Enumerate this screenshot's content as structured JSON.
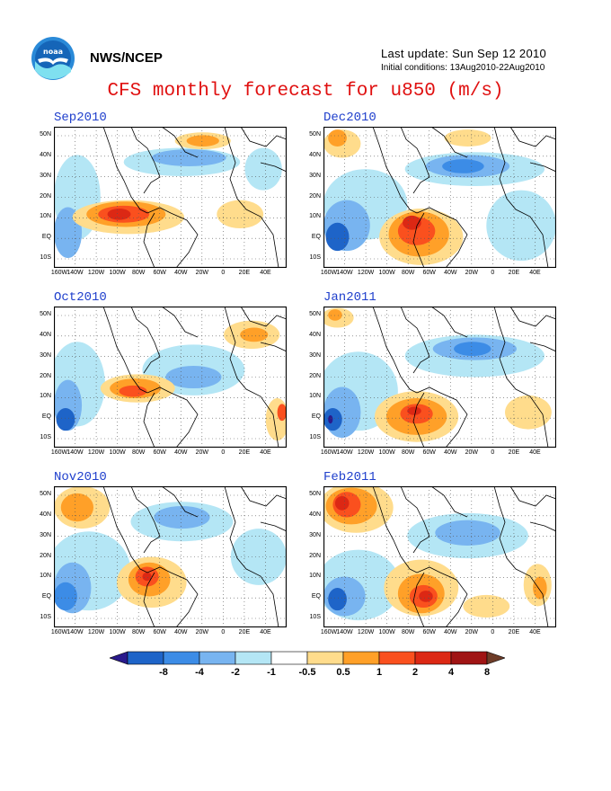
{
  "header": {
    "org": "NWS/NCEP",
    "last_update": "Last update: Sun Sep 12 2010",
    "initial_conditions": "Initial conditions: 13Aug2010-22Aug2010",
    "title": "CFS monthly forecast for u850 (m/s)"
  },
  "lat_labels": [
    "50N",
    "40N",
    "30N",
    "20N",
    "10N",
    "EQ",
    "10S"
  ],
  "lon_labels": [
    "160W",
    "140W",
    "120W",
    "100W",
    "80W",
    "60W",
    "40W",
    "20W",
    "0",
    "20E",
    "40E"
  ],
  "panels": [
    {
      "title": "Sep2010"
    },
    {
      "title": "Dec2010"
    },
    {
      "title": "Oct2010"
    },
    {
      "title": "Jan2011"
    },
    {
      "title": "Nov2010"
    },
    {
      "title": "Feb2011"
    }
  ],
  "colorbar": {
    "labels": [
      "-8",
      "-4",
      "-2",
      "-1",
      "-0.5",
      "0.5",
      "1",
      "2",
      "4",
      "8"
    ],
    "colors": [
      "#2a1a8c",
      "#1e64c8",
      "#3c8ce6",
      "#78b4f0",
      "#b4e6f5",
      "#ffffff",
      "#ffdc8c",
      "#ffa028",
      "#fa501e",
      "#dc2814",
      "#a01414",
      "#6e3c28"
    ]
  }
}
